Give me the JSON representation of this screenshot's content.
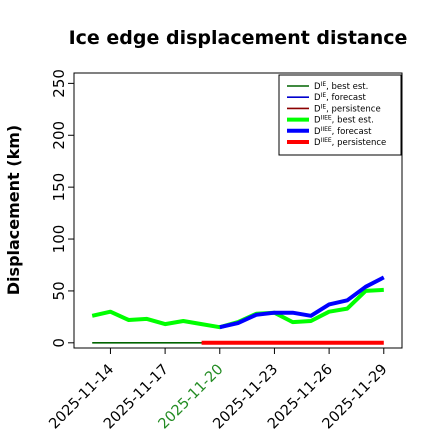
{
  "chart_data": {
    "type": "line",
    "title": "Ice edge displacement distance",
    "xlabel": "",
    "ylabel": "Displacement (km)",
    "xlim": [
      "2025-11-12",
      "2025-11-30"
    ],
    "ylim": [
      -5,
      260
    ],
    "yticks": [
      0,
      50,
      100,
      150,
      200,
      250
    ],
    "xticks": [
      "2025-11-14",
      "2025-11-17",
      "2025-11-20",
      "2025-11-23",
      "2025-11-26",
      "2025-11-29"
    ],
    "highlight_tick": "2025-11-20",
    "highlight_color": "#228b22",
    "grid": false,
    "legend_position": "top-right",
    "series": [
      {
        "name": "D^IE, best est.",
        "label_main": "D",
        "label_sup": "IE",
        "label_rest": ", best est.",
        "color": "#006400",
        "width": "thin",
        "x": [
          "2025-11-13",
          "2025-11-14",
          "2025-11-15",
          "2025-11-16",
          "2025-11-17",
          "2025-11-18",
          "2025-11-19",
          "2025-11-20"
        ],
        "y": [
          0,
          0,
          0,
          0,
          0,
          0,
          0,
          0
        ]
      },
      {
        "name": "D^IE, forecast",
        "label_main": "D",
        "label_sup": "IE",
        "label_rest": ", forecast",
        "color": "#0000cd",
        "width": "thin",
        "x": [],
        "y": []
      },
      {
        "name": "D^IE, persistence",
        "label_main": "D",
        "label_sup": "IE",
        "label_rest": ", persistence",
        "color": "#8b0000",
        "width": "thin",
        "x": [],
        "y": []
      },
      {
        "name": "D^IIEE, best est.",
        "label_main": "D",
        "label_sup": "IIEE",
        "label_rest": ", best est.",
        "color": "#00ff00",
        "width": "thick",
        "x": [
          "2025-11-13",
          "2025-11-14",
          "2025-11-15",
          "2025-11-16",
          "2025-11-17",
          "2025-11-18",
          "2025-11-19",
          "2025-11-20",
          "2025-11-21",
          "2025-11-22",
          "2025-11-23",
          "2025-11-24",
          "2025-11-25",
          "2025-11-26",
          "2025-11-27",
          "2025-11-28",
          "2025-11-29"
        ],
        "y": [
          26,
          30,
          22,
          23,
          18,
          21,
          18,
          15,
          20,
          28,
          29,
          20,
          21,
          30,
          33,
          50,
          51
        ]
      },
      {
        "name": "D^IIEE, forecast",
        "label_main": "D",
        "label_sup": "IIEE",
        "label_rest": ", forecast",
        "color": "#0000ff",
        "width": "thick",
        "x": [
          "2025-11-20",
          "2025-11-21",
          "2025-11-22",
          "2025-11-23",
          "2025-11-24",
          "2025-11-25",
          "2025-11-26",
          "2025-11-27",
          "2025-11-28",
          "2025-11-29"
        ],
        "y": [
          15,
          19,
          27,
          29,
          29,
          26,
          37,
          41,
          54,
          63
        ]
      },
      {
        "name": "D^IIEE, persistence",
        "label_main": "D",
        "label_sup": "IIEE",
        "label_rest": ", persistence",
        "color": "#ff0000",
        "width": "thick",
        "x": [
          "2025-11-19",
          "2025-11-20",
          "2025-11-21",
          "2025-11-22",
          "2025-11-23",
          "2025-11-24",
          "2025-11-25",
          "2025-11-26",
          "2025-11-27",
          "2025-11-28",
          "2025-11-29"
        ],
        "y": [
          0,
          0,
          0,
          0,
          0,
          0,
          0,
          0,
          0,
          0,
          0
        ]
      }
    ]
  }
}
